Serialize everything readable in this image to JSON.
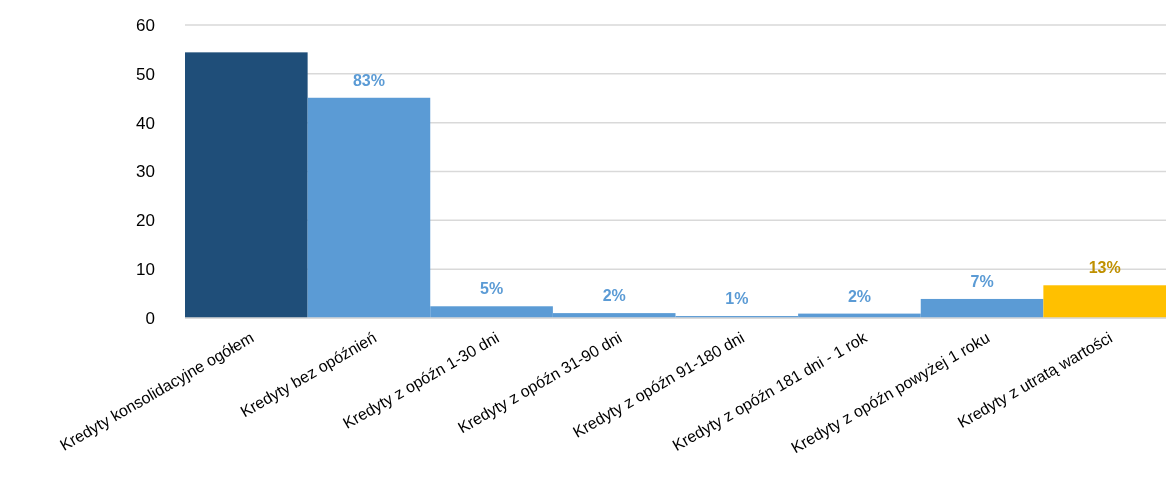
{
  "chart_data": {
    "type": "bar",
    "categories": [
      "Kredyty konsolidacyjne ogółem",
      "Kredyty bez opóźnień",
      "Kredyty z opóźn 1-30 dni",
      "Kredyty z opóźn 31-90 dni",
      "Kredyty z opóźn 91-180 dni",
      "Kredyty z opóźn 181 dni - 1 rok",
      "Kredyty z opóźn powyżej 1 roku",
      "Kredyty z utratą wartości"
    ],
    "values": [
      54.4,
      45.1,
      2.4,
      1.0,
      0.4,
      0.9,
      3.9,
      6.7
    ],
    "colors": [
      "#1f4e79",
      "#5b9bd5",
      "#5b9bd5",
      "#5b9bd5",
      "#5b9bd5",
      "#5b9bd5",
      "#5b9bd5",
      "#ffc000"
    ],
    "annotations": [
      {
        "text": "83%",
        "x": "Kredyty bez opóźnień",
        "y": 45.1
      },
      {
        "text": "5%",
        "x": "Kredyty z opóźn 1-30 dni",
        "y": 2.4
      },
      {
        "text": "2%",
        "x": "Kredyty z opóźn 31-90 dni",
        "y": 1.0
      },
      {
        "text": "1%",
        "x": "Kredyty z opóźn 91-180 dni",
        "y": 0.4
      },
      {
        "text": "2%",
        "x": "Kredyty z opóźn 181 dni - 1 rok",
        "y": 0.9
      },
      {
        "text": "7%",
        "x": "Kredyty z opóźn powyżej 1 roku",
        "y": 3.9
      },
      {
        "text": "13%",
        "x": "Kredyty z utratą wartości",
        "y": 6.7
      }
    ],
    "ylim": [
      0,
      60
    ],
    "yticks": [
      0,
      10,
      20,
      30,
      40,
      50,
      60
    ],
    "grid": "y"
  }
}
